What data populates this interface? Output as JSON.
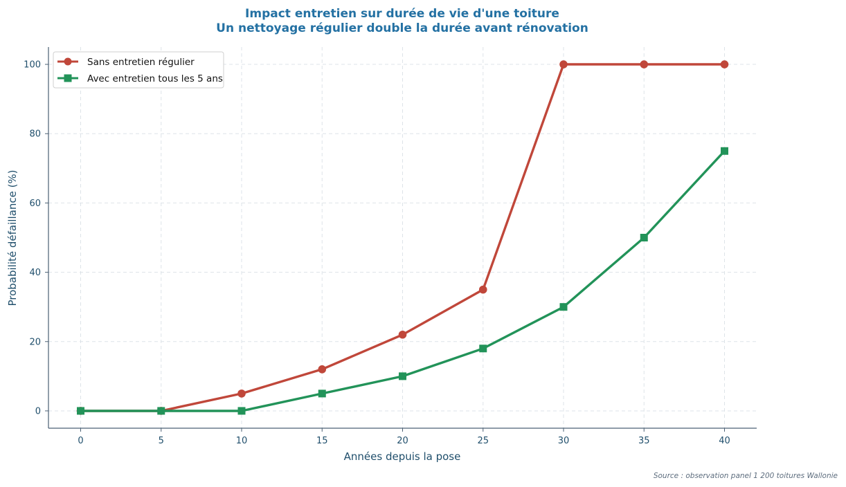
{
  "chart_data": {
    "type": "line",
    "title": "Impact entretien sur durée de vie d'une toiture",
    "subtitle": "Un nettoyage régulier double la durée avant rénovation",
    "xlabel": "Années depuis la pose",
    "ylabel": "Probabilité défaillance (%)",
    "x": [
      0,
      5,
      10,
      15,
      20,
      25,
      30,
      35,
      40
    ],
    "x_ticks": [
      0,
      5,
      10,
      15,
      20,
      25,
      30,
      35,
      40
    ],
    "y_ticks": [
      0,
      20,
      40,
      60,
      80,
      100
    ],
    "xlim": [
      -2,
      42
    ],
    "ylim": [
      -5,
      105
    ],
    "grid": true,
    "legend_position": "top-left",
    "series": [
      {
        "name": "Sans entretien régulier",
        "values": [
          0,
          0,
          5,
          12,
          22,
          35,
          100,
          100,
          100
        ],
        "color": "#c0473a",
        "marker": "circle"
      },
      {
        "name": "Avec entretien tous les 5 ans",
        "values": [
          0,
          0,
          0,
          5,
          10,
          18,
          30,
          50,
          75
        ],
        "color": "#229359",
        "marker": "square"
      }
    ],
    "source": "Source : observation panel 1 200 toitures Wallonie"
  }
}
